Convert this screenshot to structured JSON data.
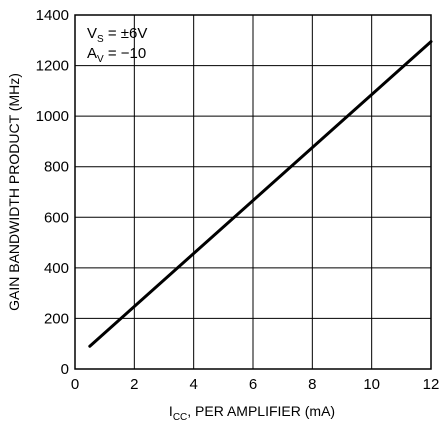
{
  "chart_data": {
    "type": "line",
    "xlabel_main": "I",
    "xlabel_sub": "CC",
    "xlabel_rest": ", PER AMPLIFIER (mA)",
    "ylabel": "GAIN BANDWIDTH PRODUCT (MHz)",
    "xlim": [
      0,
      12
    ],
    "ylim": [
      0,
      1400
    ],
    "x_ticks": [
      "0",
      "2",
      "4",
      "6",
      "8",
      "10",
      "12"
    ],
    "y_ticks": [
      "0",
      "200",
      "400",
      "600",
      "800",
      "1000",
      "1200",
      "1400"
    ],
    "grid": true,
    "annotations": {
      "vs_main": "V",
      "vs_sub": "S",
      "vs_rest": " = ±6V",
      "av_main": "A",
      "av_sub": "V",
      "av_rest": " = −10"
    },
    "series": [
      {
        "x": [
          0.5,
          12
        ],
        "y": [
          90,
          1295
        ]
      }
    ],
    "line_color": "#000000"
  }
}
